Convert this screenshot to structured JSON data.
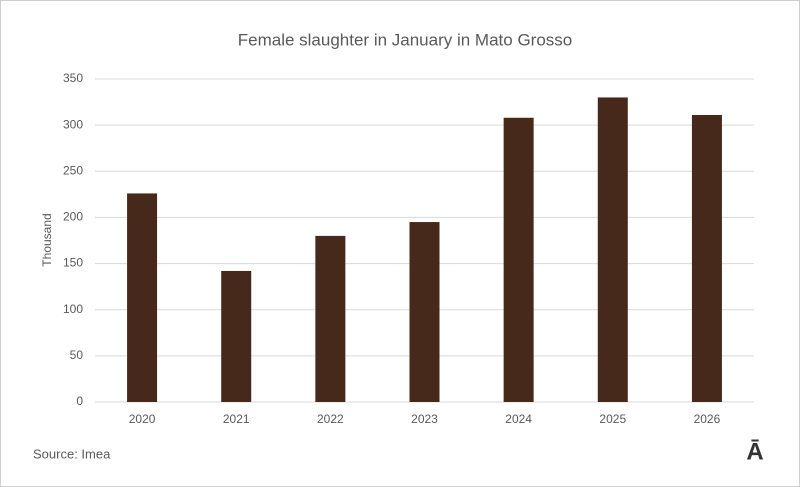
{
  "chart_data": {
    "type": "bar",
    "title": "Female slaughter in January in Mato Grosso",
    "y_label": "Thousand",
    "categories": [
      "2020",
      "2021",
      "2022",
      "2023",
      "2024",
      "2025",
      "2026"
    ],
    "values": [
      226,
      142,
      180,
      195,
      308,
      330,
      311
    ],
    "color": "#46291b",
    "ylim": [
      0,
      350
    ],
    "yticks": [
      0,
      50,
      100,
      150,
      200,
      250,
      300,
      350
    ],
    "grid": true,
    "source": "Source: Imea",
    "logo": "Ā"
  }
}
